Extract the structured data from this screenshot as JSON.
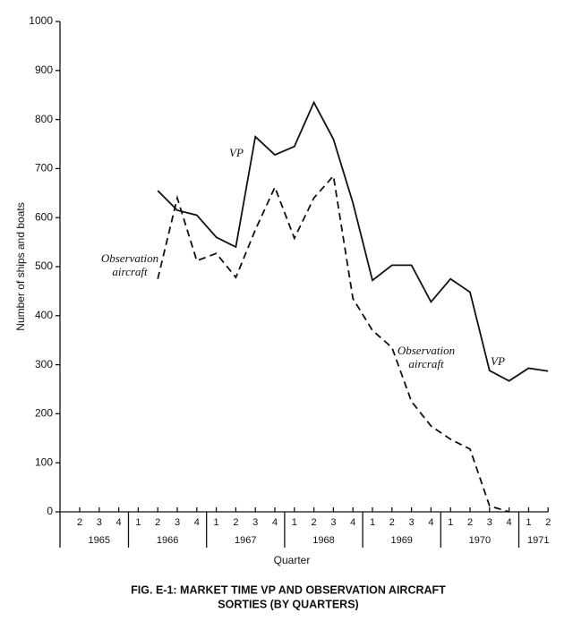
{
  "chart_data": {
    "type": "line",
    "title": [
      "FIG. E-1:  MARKET TIME VP AND OBSERVATION AIRCRAFT",
      "SORTIES  (BY QUARTERS)"
    ],
    "xlabel": "Quarter",
    "ylabel": "Number of ships and boats",
    "groups": [
      {
        "label": "1965",
        "quarters": [
          "2",
          "3",
          "4"
        ]
      },
      {
        "label": "1966",
        "quarters": [
          "1",
          "2",
          "3",
          "4"
        ]
      },
      {
        "label": "1967",
        "quarters": [
          "1",
          "2",
          "3",
          "4"
        ]
      },
      {
        "label": "1968",
        "quarters": [
          "1",
          "2",
          "3",
          "4"
        ]
      },
      {
        "label": "1969",
        "quarters": [
          "1",
          "2",
          "3",
          "4"
        ]
      },
      {
        "label": "1970",
        "quarters": [
          "1",
          "2",
          "3",
          "4"
        ]
      },
      {
        "label": "1971",
        "quarters": [
          "1",
          "2"
        ]
      }
    ],
    "ylim": [
      0,
      1000
    ],
    "yticks": [
      0,
      100,
      200,
      300,
      400,
      500,
      600,
      700,
      800,
      900,
      1000
    ],
    "series": [
      {
        "color": "#111111",
        "style": "solid",
        "values": [
          null,
          null,
          null,
          null,
          655,
          615,
          605,
          560,
          540,
          765,
          728,
          745,
          835,
          760,
          630,
          472,
          503,
          503,
          428,
          475,
          448,
          288,
          267,
          293,
          287
        ]
      },
      {
        "color": "#111111",
        "style": "dashed",
        "values": [
          null,
          null,
          null,
          null,
          475,
          640,
          512,
          527,
          478,
          575,
          662,
          558,
          640,
          685,
          435,
          370,
          335,
          225,
          175,
          148,
          128,
          12,
          0,
          null,
          null
        ]
      }
    ],
    "annotations": [
      {
        "lines": [
          "VP"
        ]
      },
      {
        "lines": [
          "Observation",
          "aircraft"
        ]
      },
      {
        "lines": [
          "Observation",
          "aircraft"
        ]
      },
      {
        "lines": [
          "VP"
        ]
      }
    ]
  }
}
